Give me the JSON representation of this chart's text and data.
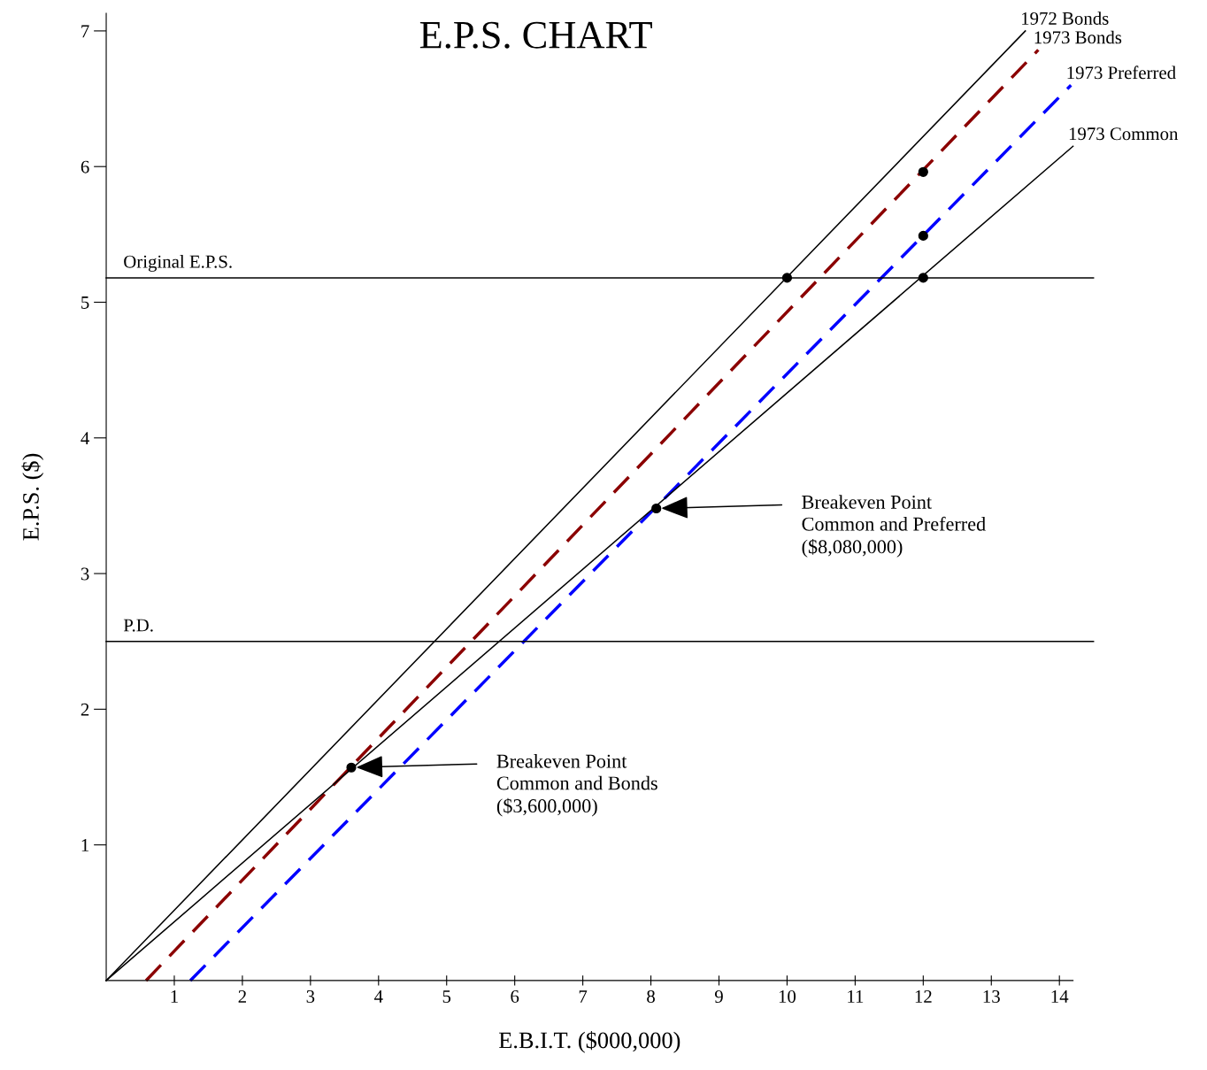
{
  "chart_data": {
    "type": "line",
    "title": "E.P.S. CHART",
    "xlabel": "E.B.I.T. ($000,000)",
    "ylabel": "E.P.S. ($)",
    "xlim": [
      0,
      14.2
    ],
    "ylim": [
      0,
      7.13
    ],
    "xticks": [
      1,
      2,
      3,
      4,
      5,
      6,
      7,
      8,
      9,
      10,
      11,
      12,
      13,
      14
    ],
    "yticks": [
      1,
      2,
      3,
      4,
      5,
      6,
      7
    ],
    "grid": false,
    "legend": false,
    "marker": "none",
    "series": [
      {
        "name": "1972 Bonds",
        "color": "#000000",
        "line_style": "solid",
        "x": [
          0,
          13.5
        ],
        "values": [
          0,
          7.0
        ]
      },
      {
        "name": "1973 Bonds",
        "color": "#8b0000",
        "line_style": "dashed",
        "x": [
          0.585,
          13.69
        ],
        "values": [
          0,
          6.86
        ]
      },
      {
        "name": "1973 Preferred",
        "color": "#0000ff",
        "line_style": "dashed",
        "x": [
          1.235,
          14.17
        ],
        "values": [
          0,
          6.6
        ]
      },
      {
        "name": "1973 Common",
        "color": "#000000",
        "line_style": "solid",
        "x": [
          0,
          14.2
        ],
        "values": [
          0,
          6.15
        ]
      },
      {
        "type": "scatter",
        "color": "#000000",
        "marker": "circle",
        "x": [
          3.6,
          8.08,
          10,
          12,
          12,
          12
        ],
        "values": [
          1.57,
          3.48,
          5.18,
          5.96,
          5.49,
          5.18
        ]
      }
    ],
    "ref_lines": [
      {
        "axis": "y",
        "value": 5.18,
        "label": "Original E.P.S.",
        "color": "#000000"
      },
      {
        "axis": "y",
        "value": 2.5,
        "label": "P.D.",
        "color": "#000000"
      }
    ],
    "annotations": [
      {
        "text": "Breakeven Point\nCommon and Preferred\n($8,080,000)",
        "x": 8.08,
        "y": 3.48
      },
      {
        "text": "Breakeven Point\nCommon and Bonds\n($3,600,000)",
        "x": 3.6,
        "y": 1.57
      }
    ]
  }
}
